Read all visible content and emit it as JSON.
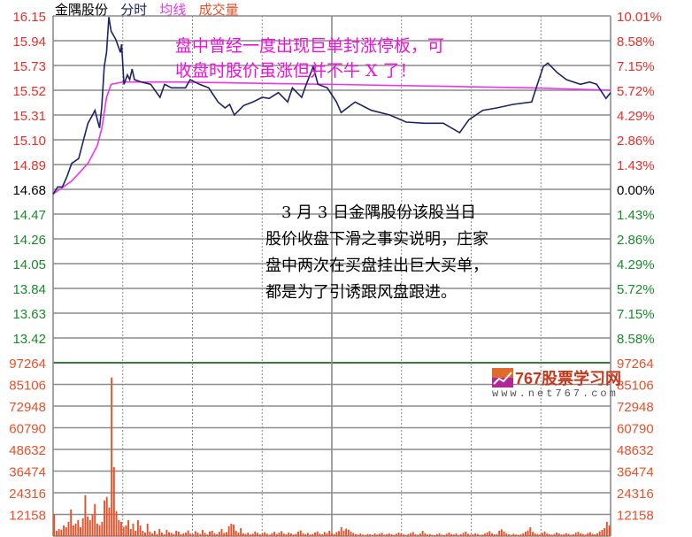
{
  "header": {
    "stock_name": "金隅股份",
    "tab_intraday": "分时",
    "tab_avg": "均线",
    "tab_volume": "成交量"
  },
  "colors": {
    "price_line": "#1c2466",
    "avg_line": "#ee33ee",
    "volume_bar": "#e8502a",
    "up": "#e8302a",
    "down": "#1a8a2a",
    "grid": "#8c8c8c"
  },
  "annotations": {
    "note1": [
      "盘中曾经一度出现巨单封涨停板，可",
      "收盘时股价虽涨但并不牛 X 了！"
    ],
    "note2": [
      "　3 月 3 日金隅股份该股当日",
      "股价收盘下滑之事实说明，庄家",
      "盘中两次在买盘挂出巨大买单，",
      "都是为了引诱跟风盘跟进。"
    ]
  },
  "watermark": {
    "title": "767股票学习网",
    "url": "www.net767.com"
  },
  "chart_data": {
    "type": "line",
    "title": "",
    "prev_close": 14.68,
    "xlim": [
      0,
      240
    ],
    "price_ylim": [
      13.21,
      16.15
    ],
    "price_ticks": [
      "16.15",
      "15.94",
      "15.73",
      "15.52",
      "15.31",
      "15.10",
      "14.89",
      "14.68",
      "14.47",
      "14.26",
      "14.05",
      "13.84",
      "13.63",
      "13.42"
    ],
    "percent_ticks": [
      "10.01%",
      "8.58%",
      "7.15%",
      "5.72%",
      "4.29%",
      "2.86%",
      "1.43%",
      "0.00%",
      "1.43%",
      "2.86%",
      "4.29%",
      "5.72%",
      "7.15%",
      "8.58%"
    ],
    "volume_ticks": [
      "97264",
      "85106",
      "72948",
      "60790",
      "48632",
      "36474",
      "24316",
      "12158"
    ],
    "volume_ylim": [
      0,
      97264
    ],
    "price_series": [
      [
        0,
        14.64
      ],
      [
        2,
        14.7
      ],
      [
        4,
        14.7
      ],
      [
        6,
        14.79
      ],
      [
        8,
        14.9
      ],
      [
        11,
        14.94
      ],
      [
        13,
        15.09
      ],
      [
        15,
        15.24
      ],
      [
        17,
        15.31
      ],
      [
        18,
        15.35
      ],
      [
        20,
        15.2
      ],
      [
        21,
        15.39
      ],
      [
        22,
        15.72
      ],
      [
        23,
        15.84
      ],
      [
        24,
        16.14
      ],
      [
        25,
        16.02
      ],
      [
        27,
        15.95
      ],
      [
        29,
        15.84
      ],
      [
        29.5,
        15.91
      ],
      [
        30.5,
        15.57
      ],
      [
        32,
        15.65
      ],
      [
        33,
        15.61
      ],
      [
        34,
        15.7
      ],
      [
        35,
        15.61
      ],
      [
        38,
        15.59
      ],
      [
        42,
        15.57
      ],
      [
        46,
        15.46
      ],
      [
        48,
        15.57
      ],
      [
        51,
        15.54
      ],
      [
        57,
        15.54
      ],
      [
        59,
        15.61
      ],
      [
        63,
        15.57
      ],
      [
        67,
        15.54
      ],
      [
        71,
        15.42
      ],
      [
        74,
        15.37
      ],
      [
        76,
        15.4
      ],
      [
        78,
        15.31
      ],
      [
        82,
        15.39
      ],
      [
        86,
        15.42
      ],
      [
        90,
        15.46
      ],
      [
        93,
        15.45
      ],
      [
        97,
        15.5
      ],
      [
        101,
        15.42
      ],
      [
        103,
        15.54
      ],
      [
        107,
        15.46
      ],
      [
        109,
        15.57
      ],
      [
        112,
        15.72
      ],
      [
        114,
        15.57
      ],
      [
        118,
        15.54
      ],
      [
        122,
        15.42
      ],
      [
        124,
        15.33
      ],
      [
        130,
        15.42
      ],
      [
        137,
        15.35
      ],
      [
        145,
        15.31
      ],
      [
        152,
        15.25
      ],
      [
        160,
        15.24
      ],
      [
        168,
        15.24
      ],
      [
        175,
        15.16
      ],
      [
        179,
        15.27
      ],
      [
        185,
        15.35
      ],
      [
        191,
        15.37
      ],
      [
        198,
        15.4
      ],
      [
        206,
        15.42
      ],
      [
        208,
        15.54
      ],
      [
        211,
        15.72
      ],
      [
        213,
        15.75
      ],
      [
        217,
        15.67
      ],
      [
        221,
        15.61
      ],
      [
        227,
        15.57
      ],
      [
        231,
        15.59
      ],
      [
        234,
        15.57
      ],
      [
        238,
        15.45
      ],
      [
        240,
        15.5
      ]
    ],
    "avg_series": [
      [
        0,
        14.64
      ],
      [
        8,
        14.75
      ],
      [
        15,
        14.9
      ],
      [
        19,
        15.05
      ],
      [
        21,
        15.2
      ],
      [
        23,
        15.46
      ],
      [
        25,
        15.57
      ],
      [
        30,
        15.59
      ],
      [
        53,
        15.59
      ],
      [
        118,
        15.57
      ],
      [
        206,
        15.54
      ],
      [
        240,
        15.52
      ]
    ],
    "volume": [
      12400,
      3000,
      4000,
      3500,
      6000,
      5000,
      8000,
      15000,
      6000,
      7000,
      9000,
      5000,
      10000,
      23000,
      11000,
      9000,
      12000,
      18000,
      7000,
      6000,
      8000,
      20000,
      22000,
      16000,
      89000,
      38700,
      14000,
      9000,
      8000,
      5000,
      6000,
      9000,
      4000,
      7000,
      3000,
      9000,
      6000,
      3000,
      2000,
      7000,
      2500,
      1500,
      3000,
      1200,
      4000,
      2000,
      1000,
      3500,
      2200,
      1800,
      1200,
      3000,
      2500,
      1000,
      1500,
      2000,
      3200,
      1400,
      1000,
      2800,
      2000,
      1200,
      3500,
      1800,
      900,
      2600,
      3000,
      1500,
      1100,
      2400,
      4000,
      1800,
      2200,
      5500,
      7000,
      6500,
      3000,
      2000,
      4500,
      1500,
      1200,
      2000,
      900,
      1400,
      2600,
      1800,
      1000,
      1500,
      2200,
      1300,
      800,
      1600,
      2400,
      1200,
      1900,
      2800,
      1400,
      1000,
      2100,
      1500,
      900,
      1300,
      2500,
      3200,
      1600,
      1100,
      1800,
      900,
      1200,
      2000,
      2600,
      1400,
      1000,
      2300,
      1700,
      3000,
      1500,
      1200,
      2200,
      2800,
      5000,
      3000,
      4200,
      3600,
      2500,
      1800,
      1200,
      900,
      1500,
      800,
      600,
      1200,
      1000,
      700,
      1500,
      900,
      1300,
      1800,
      800,
      1100,
      1600,
      1000,
      700,
      1300,
      2000,
      1500,
      900,
      600,
      1200,
      1700,
      2200,
      1000,
      800,
      1400,
      3000,
      1600,
      900,
      1200,
      700,
      500,
      1100,
      1500,
      800,
      600,
      1300,
      2000,
      1200,
      900,
      1500,
      700,
      1100,
      1800,
      2500,
      1300,
      800,
      1000,
      1600,
      1200,
      700,
      900,
      1400,
      2000,
      2800,
      1500,
      1000,
      1200,
      3000,
      3800,
      2600,
      1500,
      1000,
      800,
      1300,
      900,
      700,
      1100,
      1600,
      2500,
      3200,
      5000,
      2400,
      1500,
      1200,
      900,
      1800,
      2600,
      1400,
      1000,
      800,
      1200,
      2000,
      1500,
      900,
      1100,
      1600,
      1300,
      800,
      1000,
      1900,
      2400,
      1500,
      1200,
      900,
      1700,
      2200,
      1300,
      1000,
      1500,
      2600,
      3500,
      4500,
      8000,
      6000
    ]
  }
}
